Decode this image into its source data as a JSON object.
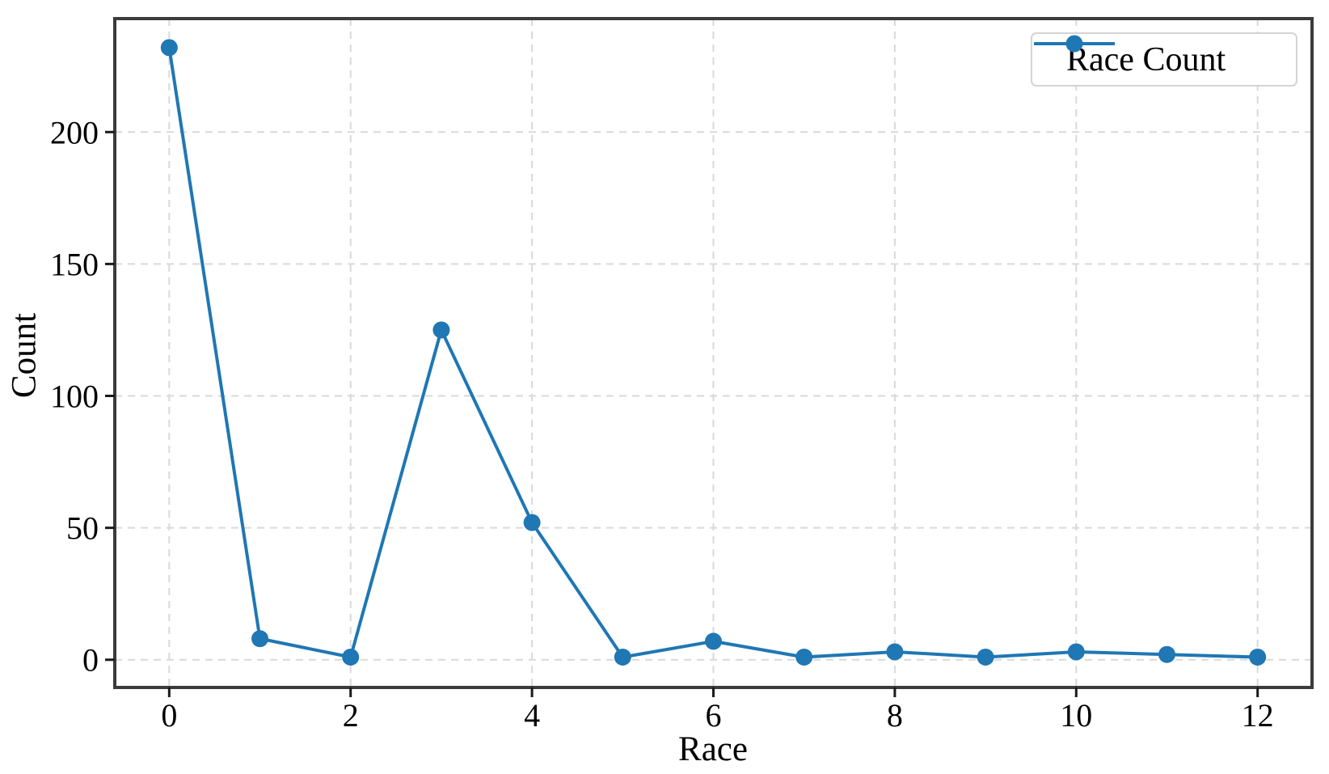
{
  "chart_data": {
    "type": "line",
    "title": "",
    "xlabel": "Race",
    "ylabel": "Count",
    "x": [
      0,
      1,
      2,
      3,
      4,
      5,
      6,
      7,
      8,
      9,
      10,
      11,
      12
    ],
    "series": [
      {
        "name": "Race Count",
        "values": [
          232,
          8,
          1,
          125,
          52,
          1,
          7,
          1,
          3,
          1,
          3,
          2,
          1
        ]
      }
    ],
    "xticks": [
      0,
      2,
      4,
      6,
      8,
      10,
      12
    ],
    "yticks": [
      0,
      50,
      100,
      150,
      200
    ],
    "xlim": [
      -0.6,
      12.6
    ],
    "ylim": [
      -10.5,
      243
    ],
    "grid": true,
    "grid_style": "dashed",
    "legend": {
      "label": "Race Count",
      "position": "upper right"
    },
    "colors": {
      "line": "#1f77b4",
      "marker": "#1f77b4",
      "grid": "#d9d9d9",
      "spine": "#3b3b3b",
      "tick": "#1a1a1a",
      "text": "#000000",
      "background": "#ffffff"
    }
  }
}
